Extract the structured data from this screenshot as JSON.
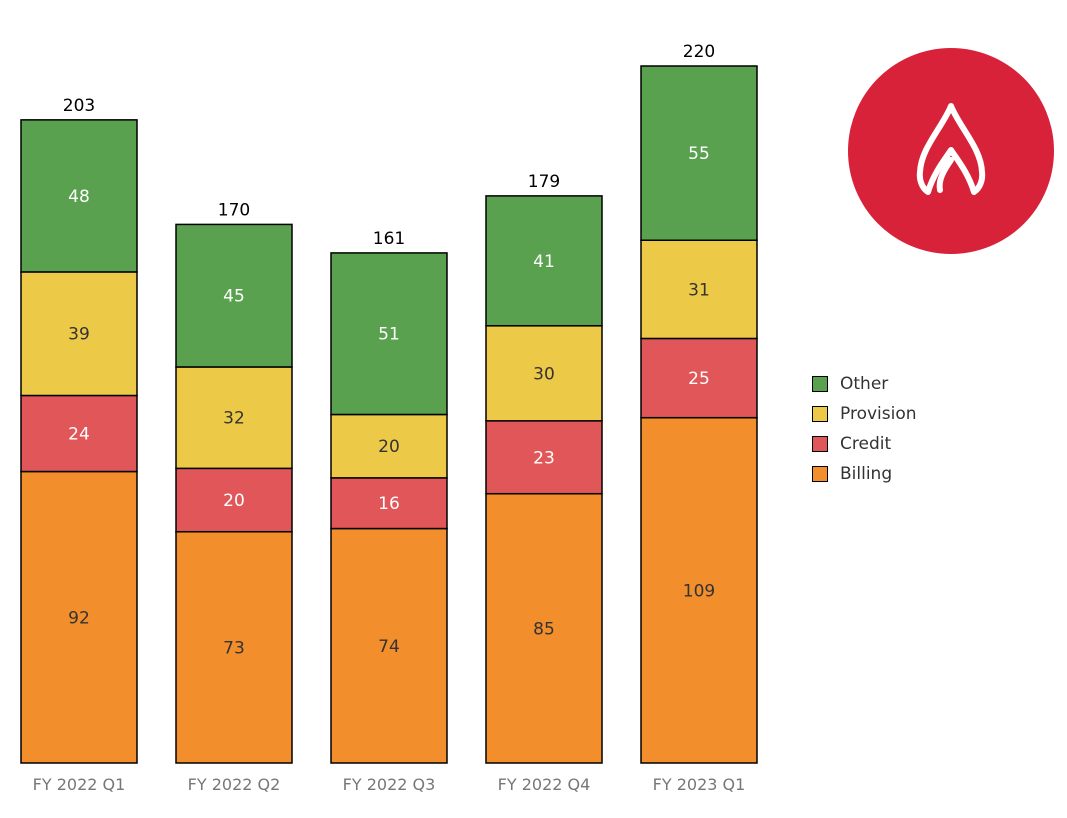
{
  "chart_data": {
    "type": "bar",
    "stacked": true,
    "categories": [
      "FY 2022 Q1",
      "FY 2022 Q2",
      "FY 2022 Q3",
      "FY 2022 Q4",
      "FY 2023 Q1"
    ],
    "series": [
      {
        "name": "Billing",
        "color": "#f28e2b",
        "label_color": "#333333",
        "values": [
          92,
          73,
          74,
          85,
          109
        ]
      },
      {
        "name": "Credit",
        "color": "#e15759",
        "label_color": "#ffffff",
        "values": [
          24,
          20,
          16,
          23,
          25
        ]
      },
      {
        "name": "Provision",
        "color": "#edc948",
        "label_color": "#333333",
        "values": [
          39,
          32,
          20,
          30,
          31
        ]
      },
      {
        "name": "Other",
        "color": "#59a14f",
        "label_color": "#ffffff",
        "values": [
          48,
          45,
          51,
          41,
          55
        ]
      }
    ],
    "totals": [
      203,
      170,
      161,
      179,
      220
    ],
    "legend_order": [
      "Other",
      "Provision",
      "Credit",
      "Billing"
    ],
    "legend_position": "right",
    "grid": false,
    "ylim": [
      0,
      220
    ],
    "title": "",
    "xlabel": "",
    "ylabel": ""
  },
  "badge": {
    "icon": "flame-icon",
    "color": "#d7223a"
  }
}
